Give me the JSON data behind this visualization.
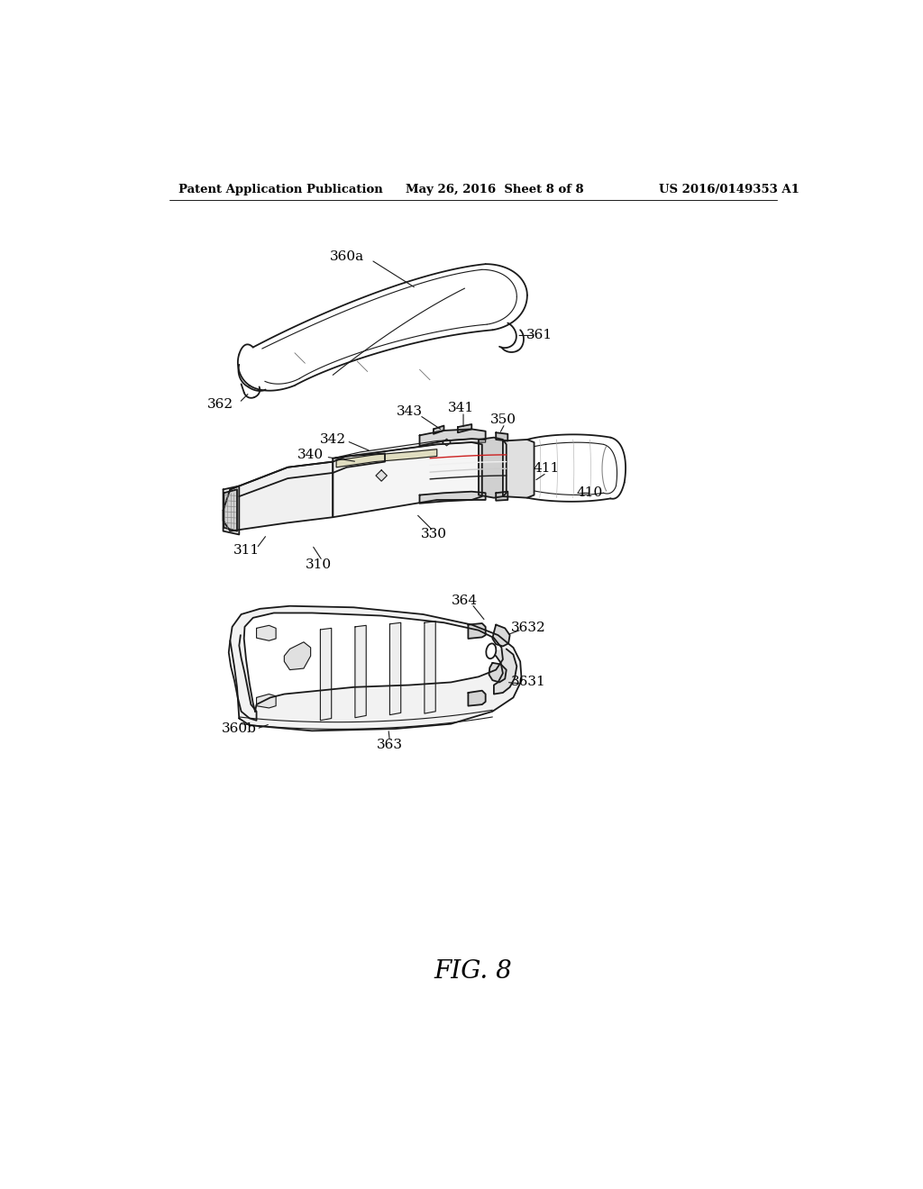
{
  "title": "FIG. 8",
  "header_left": "Patent Application Publication",
  "header_mid": "May 26, 2016  Sheet 8 of 8",
  "header_right": "US 2016/0149353 A1",
  "bg_color": "#ffffff",
  "line_color": "#1a1a1a",
  "fig_caption": "FIG. 8"
}
